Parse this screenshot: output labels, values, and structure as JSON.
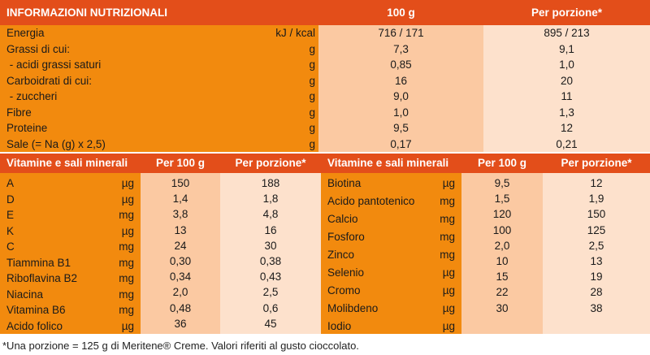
{
  "top": {
    "header": {
      "name": "INFORMAZIONI NUTRIZIONALI",
      "v1": "100 g",
      "v2": "Per porzione*"
    },
    "rows": [
      {
        "name": "Energia",
        "unit": "kJ / kcal",
        "v1": "716 / 171",
        "v2": "895 / 213"
      },
      {
        "name": "Grassi di cui:",
        "unit": "g",
        "v1": "7,3",
        "v2": "9,1"
      },
      {
        "name": " - acidi grassi saturi",
        "unit": "g",
        "v1": "0,85",
        "v2": "1,0"
      },
      {
        "name": "Carboidrati di cui:",
        "unit": "g",
        "v1": "16",
        "v2": "20"
      },
      {
        "name": " - zuccheri",
        "unit": "g",
        "v1": "9,0",
        "v2": "11"
      },
      {
        "name": "Fibre",
        "unit": "g",
        "v1": "1,0",
        "v2": "1,3"
      },
      {
        "name": "Proteine",
        "unit": "g",
        "v1": "9,5",
        "v2": "12"
      },
      {
        "name": "Sale (= Na (g) x 2,5)",
        "unit": "g",
        "v1": "0,17",
        "v2": "0,21"
      }
    ]
  },
  "vitamins_left": {
    "header": {
      "name": "Vitamine e sali minerali",
      "v1": "Per 100 g",
      "v2": "Per porzione*"
    },
    "rows": [
      {
        "name": "A",
        "unit": "µg",
        "v1": "150",
        "v2": "188"
      },
      {
        "name": "D",
        "unit": "µg",
        "v1": "1,4",
        "v2": "1,8"
      },
      {
        "name": "E",
        "unit": "mg",
        "v1": "3,8",
        "v2": "4,8"
      },
      {
        "name": "K",
        "unit": "µg",
        "v1": "13",
        "v2": "16"
      },
      {
        "name": "C",
        "unit": "mg",
        "v1": "24",
        "v2": "30"
      },
      {
        "name": "Tiammina B1",
        "unit": "mg",
        "v1": "0,30",
        "v2": "0,38"
      },
      {
        "name": "Riboflavina B2",
        "unit": "mg",
        "v1": "0,34",
        "v2": "0,43"
      },
      {
        "name": "Niacina",
        "unit": "mg",
        "v1": "2,0",
        "v2": "2,5"
      },
      {
        "name": "Vitamina B6",
        "unit": "mg",
        "v1": "0,48",
        "v2": "0,6"
      },
      {
        "name": "Acido folico",
        "unit": "µg",
        "v1": "36",
        "v2": "45"
      }
    ]
  },
  "vitamins_right": {
    "header": {
      "name": "Vitamine e sali minerali",
      "v1": "Per 100 g",
      "v2": "Per porzione*"
    },
    "rows": [
      {
        "name": "Biotina",
        "unit": "µg",
        "v1": "9,5",
        "v2": "12"
      },
      {
        "name": "Acido pantotenico",
        "unit": "mg",
        "v1": "1,5",
        "v2": "1,9"
      },
      {
        "name": "Calcio",
        "unit": "mg",
        "v1": "120",
        "v2": "150"
      },
      {
        "name": "Fosforo",
        "unit": "mg",
        "v1": "100",
        "v2": "125"
      },
      {
        "name": "Zinco",
        "unit": "mg",
        "v1": "2,0",
        "v2": "2,5"
      },
      {
        "name": "Selenio",
        "unit": "µg",
        "v1": "10",
        "v2": "13"
      },
      {
        "name": "Cromo",
        "unit": "µg",
        "v1": "15",
        "v2": "19"
      },
      {
        "name": "Molibdeno",
        "unit": "µg",
        "v1": "22",
        "v2": "28"
      },
      {
        "name": "Iodio",
        "unit": "µg",
        "v1": "30",
        "v2": "38"
      }
    ]
  },
  "footnote": "*Una porzione = 125 g di Meritene® Creme. Valori riferiti al gusto cioccolato.",
  "colors": {
    "header": "#e34e1a",
    "label_column": "#f28a0e",
    "value_column_1": "#fbc9a2",
    "value_column_2": "#fde1cc"
  }
}
